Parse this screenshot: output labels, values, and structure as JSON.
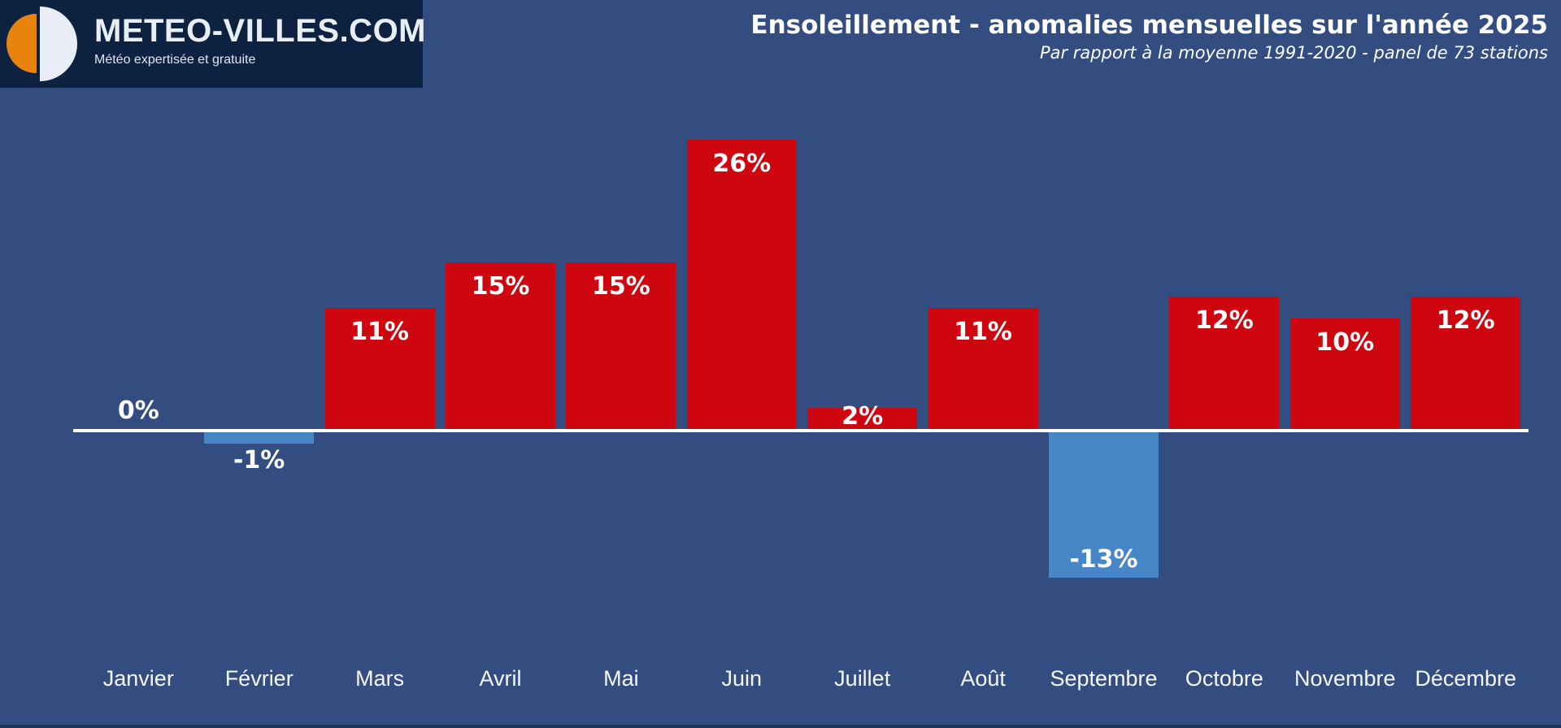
{
  "colors": {
    "background": "#334d81",
    "logo_background": "#0d2240",
    "logo_orange": "#e8830d",
    "logo_white": "#e9eef6",
    "bar_positive": "#ce0610",
    "bar_negative": "#4787c7",
    "baseline": "#ffffff",
    "text": "#ffffff"
  },
  "logo": {
    "title": "METEO-VILLES.COM",
    "subtitle": "Météo expertisée et gratuite"
  },
  "header": {
    "title": "Ensoleillement - anomalies mensuelles sur l'année 2025",
    "subtitle": "Par rapport à la moyenne 1991-2020 - panel de 73 stations"
  },
  "chart_data": {
    "type": "bar",
    "title": "Ensoleillement - anomalies mensuelles sur l'année 2025",
    "subtitle": "Par rapport à la moyenne 1991-2020 - panel de 73 stations",
    "unit": "%",
    "categories": [
      "Janvier",
      "Février",
      "Mars",
      "Avril",
      "Mai",
      "Juin",
      "Juillet",
      "Août",
      "Septembre",
      "Octobre",
      "Novembre",
      "Décembre"
    ],
    "values": [
      0,
      -1,
      11,
      15,
      15,
      26,
      2,
      11,
      -13,
      12,
      10,
      12
    ],
    "value_labels": [
      "0%",
      "-1%",
      "11%",
      "15%",
      "15%",
      "26%",
      "2%",
      "11%",
      "-13%",
      "12%",
      "10%",
      "12%"
    ],
    "label_positions": [
      "above-baseline",
      "below-bar",
      "inside-top",
      "inside-top",
      "inside-top",
      "inside-top",
      "inside-top",
      "inside-top",
      "inside-bottom",
      "inside-top",
      "inside-top",
      "inside-top"
    ],
    "positive_color": "#ce0610",
    "negative_color": "#4787c7",
    "baseline_value": 0,
    "ylim": [
      -20,
      30
    ],
    "grid": false,
    "legend": false
  }
}
